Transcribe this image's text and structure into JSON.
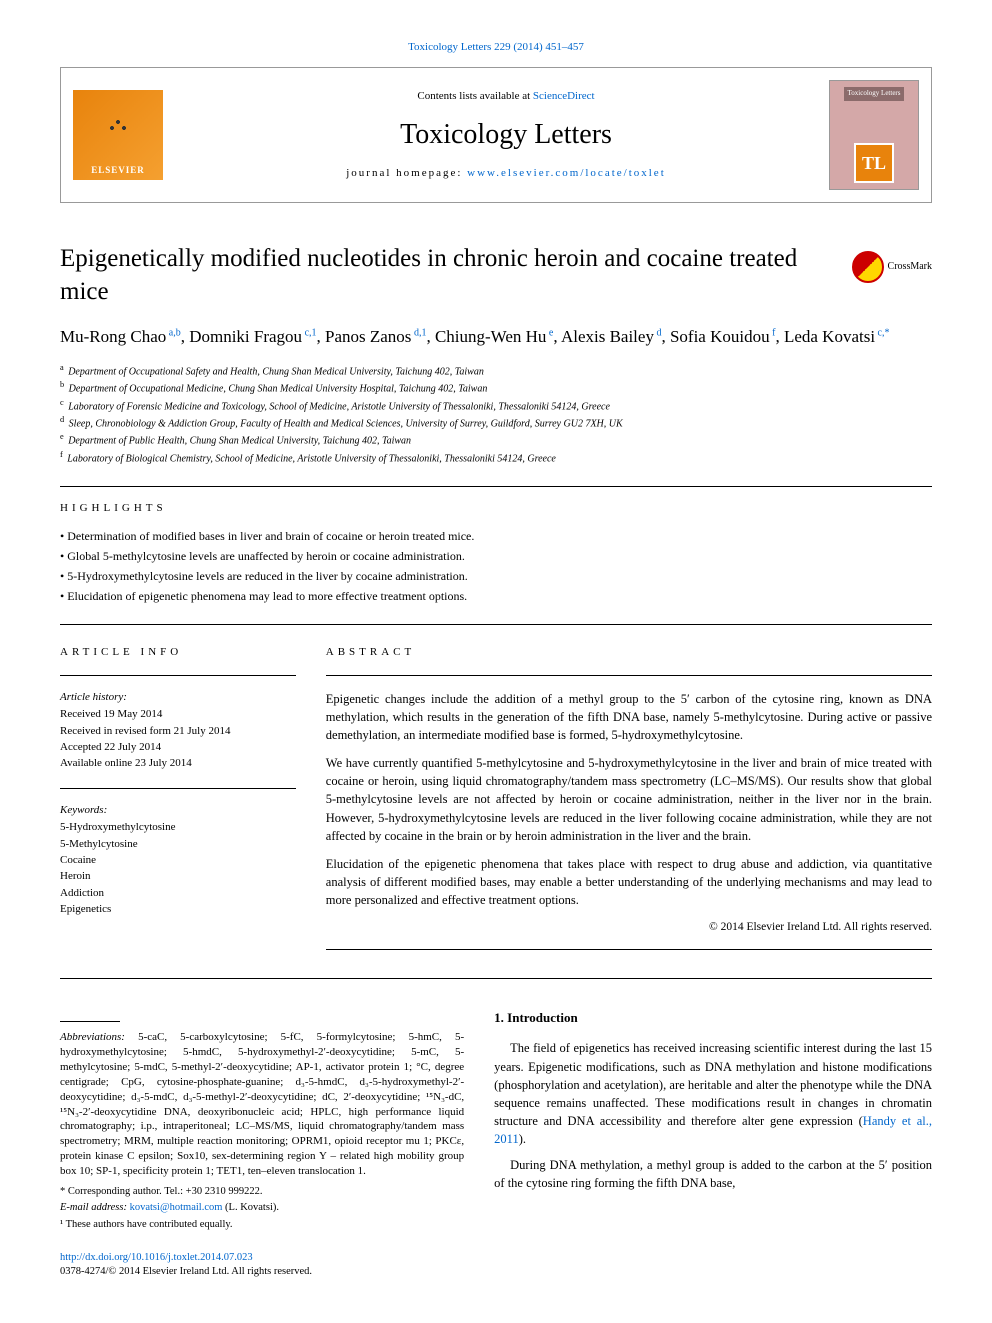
{
  "citation": "Toxicology Letters 229 (2014) 451–457",
  "header": {
    "contents_text": "Contents lists available at ",
    "sciencedirect": "ScienceDirect",
    "journal_name": "Toxicology Letters",
    "homepage_label": "journal homepage: ",
    "homepage_url": "www.elsevier.com/locate/toxlet",
    "elsevier": "ELSEVIER",
    "cover_label": "Toxicology Letters",
    "tl": "TL"
  },
  "crossmark": "CrossMark",
  "title": "Epigenetically modified nucleotides in chronic heroin and cocaine treated mice",
  "authors": [
    {
      "name": "Mu-Rong Chao",
      "sup": "a,b"
    },
    {
      "name": "Domniki Fragou",
      "sup": "c,1"
    },
    {
      "name": "Panos Zanos",
      "sup": "d,1"
    },
    {
      "name": "Chiung-Wen Hu",
      "sup": "e"
    },
    {
      "name": "Alexis Bailey",
      "sup": "d"
    },
    {
      "name": "Sofia Kouidou",
      "sup": "f"
    },
    {
      "name": "Leda Kovatsi",
      "sup": "c,*"
    }
  ],
  "affiliations": [
    {
      "sup": "a",
      "text": "Department of Occupational Safety and Health, Chung Shan Medical University, Taichung 402, Taiwan"
    },
    {
      "sup": "b",
      "text": "Department of Occupational Medicine, Chung Shan Medical University Hospital, Taichung 402, Taiwan"
    },
    {
      "sup": "c",
      "text": "Laboratory of Forensic Medicine and Toxicology, School of Medicine, Aristotle University of Thessaloniki, Thessaloniki 54124, Greece"
    },
    {
      "sup": "d",
      "text": "Sleep, Chronobiology & Addiction Group, Faculty of Health and Medical Sciences, University of Surrey, Guildford, Surrey GU2 7XH, UK"
    },
    {
      "sup": "e",
      "text": "Department of Public Health, Chung Shan Medical University, Taichung 402, Taiwan"
    },
    {
      "sup": "f",
      "text": "Laboratory of Biological Chemistry, School of Medicine, Aristotle University of Thessaloniki, Thessaloniki 54124, Greece"
    }
  ],
  "highlights_label": "HIGHLIGHTS",
  "highlights": [
    "Determination of modified bases in liver and brain of cocaine or heroin treated mice.",
    "Global 5-methylcytosine levels are unaffected by heroin or cocaine administration.",
    "5-Hydroxymethylcytosine levels are reduced in the liver by cocaine administration.",
    "Elucidation of epigenetic phenomena may lead to more effective treatment options."
  ],
  "article_info_label": "ARTICLE INFO",
  "abstract_label": "ABSTRACT",
  "history": {
    "head": "Article history:",
    "received": "Received 19 May 2014",
    "revised": "Received in revised form 21 July 2014",
    "accepted": "Accepted 22 July 2014",
    "online": "Available online 23 July 2014"
  },
  "keywords_head": "Keywords:",
  "keywords": [
    "5-Hydroxymethylcytosine",
    "5-Methylcytosine",
    "Cocaine",
    "Heroin",
    "Addiction",
    "Epigenetics"
  ],
  "abstract": {
    "p1": "Epigenetic changes include the addition of a methyl group to the 5′ carbon of the cytosine ring, known as DNA methylation, which results in the generation of the fifth DNA base, namely 5-methylcytosine. During active or passive demethylation, an intermediate modified base is formed, 5-hydroxymethylcytosine.",
    "p2": "We have currently quantified 5-methylcytosine and 5-hydroxymethylcytosine in the liver and brain of mice treated with cocaine or heroin, using liquid chromatography/tandem mass spectrometry (LC–MS/MS). Our results show that global 5-methylcytosine levels are not affected by heroin or cocaine administration, neither in the liver nor in the brain. However, 5-hydroxymethylcytosine levels are reduced in the liver following cocaine administration, while they are not affected by cocaine in the brain or by heroin administration in the liver and the brain.",
    "p3": "Elucidation of the epigenetic phenomena that takes place with respect to drug abuse and addiction, via quantitative analysis of different modified bases, may enable a better understanding of the underlying mechanisms and may lead to more personalized and effective treatment options.",
    "copyright": "© 2014 Elsevier Ireland Ltd. All rights reserved."
  },
  "abbreviations": {
    "label": "Abbreviations:",
    "text": " 5-caC, 5-carboxylcytosine; 5-fC, 5-formylcytosine; 5-hmC, 5-hydroxymethylcytosine; 5-hmdC, 5-hydroxymethyl-2′-deoxycytidine; 5-mC, 5-methylcytosine; 5-mdC, 5-methyl-2′-deoxycytidine; AP-1, activator protein 1; °C, degree centigrade; CpG, cytosine-phosphate-guanine; d₃-5-hmdC, d₃-5-hydroxymethyl-2′-deoxycytidine; d₃-5-mdC, d₃-5-methyl-2′-deoxycytidine; dC, 2′-deoxycytidine; ¹⁵N₃-dC, ¹⁵N₃-2′-deoxycytidine DNA, deoxyribonucleic acid; HPLC, high performance liquid chromatography; i.p., intraperitoneal; LC–MS/MS, liquid chromatography/tandem mass spectrometry; MRM, multiple reaction monitoring; OPRM1, opioid receptor mu 1; PKCε, protein kinase C epsilon; Sox10, sex-determining region Y – related high mobility group box 10; SP-1, specificity protein 1; TET1, ten–eleven translocation 1."
  },
  "footnotes": {
    "corresponding": "* Corresponding author. Tel.: +30 2310 999222.",
    "email_label": "E-mail address: ",
    "email": "kovatsi@hotmail.com",
    "email_tail": " (L. Kovatsi).",
    "equal": "¹ These authors have contributed equally."
  },
  "doi": {
    "url": "http://dx.doi.org/10.1016/j.toxlet.2014.07.023",
    "issn": "0378-4274/© 2014 Elsevier Ireland Ltd. All rights reserved."
  },
  "intro": {
    "heading": "1. Introduction",
    "p1_a": "The field of epigenetics has received increasing scientific interest during the last 15 years. Epigenetic modifications, such as DNA methylation and histone modifications (phosphorylation and acetylation), are heritable and alter the phenotype while the DNA sequence remains unaffected. These modifications result in changes in chromatin structure and DNA accessibility and therefore alter gene expression (",
    "p1_ref": "Handy et al., 2011",
    "p1_b": ").",
    "p2": "During DNA methylation, a methyl group is added to the carbon at the 5′ position of the cytosine ring forming the fifth DNA base,"
  },
  "colors": {
    "link": "#0066cc",
    "elsevier_orange": "#e8830c",
    "border": "#999999"
  }
}
